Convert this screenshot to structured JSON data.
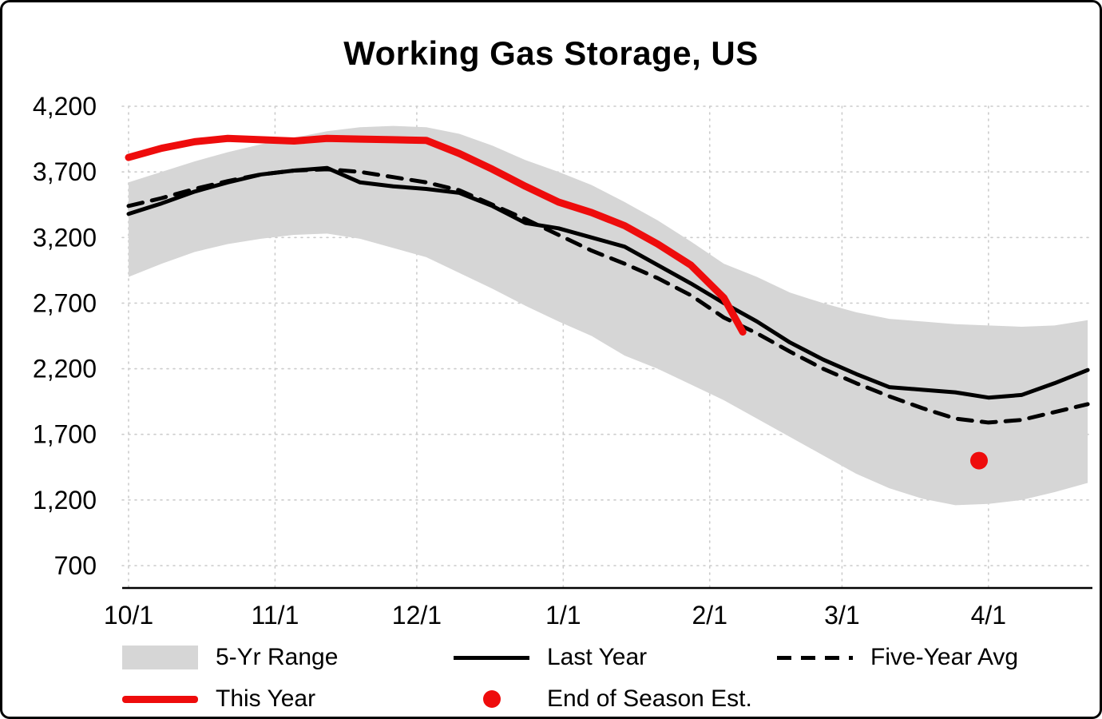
{
  "title": "Working Gas Storage, US",
  "colors": {
    "band": "#d6d6d6",
    "line_black": "#000000",
    "line_red": "#ee0c0c",
    "gridline": "#cccccc",
    "axis": "#000000"
  },
  "legend": {
    "items": [
      {
        "label": "5-Yr Range",
        "swatch": "band"
      },
      {
        "label": "Last Year",
        "swatch": "solid-line"
      },
      {
        "label": "Five-Year Avg",
        "swatch": "dashed-line"
      },
      {
        "label": "This Year",
        "swatch": "thick-red-line"
      },
      {
        "label": "End of Season Est.",
        "swatch": "red-dot"
      }
    ]
  },
  "chart_data": {
    "type": "line",
    "title": "Working Gas Storage, US",
    "xlabel": "",
    "ylabel": "",
    "x_unit": "days from Oct 1 (weekly observations)",
    "xlim": [
      0,
      204
    ],
    "ylim": [
      700,
      4200
    ],
    "grid": "dotted",
    "legend_position": "bottom",
    "x": [
      0,
      7,
      14,
      21,
      28,
      35,
      42,
      49,
      56,
      63,
      70,
      77,
      84,
      91,
      98,
      105,
      112,
      119,
      126,
      133,
      140,
      147,
      154,
      161,
      168,
      175,
      182,
      189,
      196,
      203
    ],
    "band": {
      "name": "5-Yr Range",
      "color": "#d6d6d6",
      "upper": [
        3620,
        3700,
        3780,
        3850,
        3910,
        3960,
        4010,
        4040,
        4050,
        4040,
        3990,
        3900,
        3790,
        3700,
        3600,
        3470,
        3330,
        3170,
        3000,
        2900,
        2780,
        2700,
        2630,
        2580,
        2560,
        2540,
        2530,
        2520,
        2530,
        2570
      ],
      "lower": [
        2900,
        3000,
        3090,
        3150,
        3190,
        3220,
        3230,
        3190,
        3120,
        3050,
        2930,
        2810,
        2680,
        2560,
        2450,
        2300,
        2200,
        2080,
        1960,
        1820,
        1680,
        1540,
        1400,
        1290,
        1210,
        1160,
        1170,
        1200,
        1260,
        1330
      ]
    },
    "series": [
      {
        "name": "Last Year",
        "color": "#000000",
        "style": "solid",
        "width": 5,
        "values": [
          3380,
          3460,
          3550,
          3620,
          3680,
          3710,
          3730,
          3620,
          3590,
          3570,
          3540,
          3440,
          3310,
          3270,
          3200,
          3130,
          2990,
          2850,
          2700,
          2560,
          2400,
          2270,
          2160,
          2060,
          2040,
          2020,
          1980,
          2000,
          2090,
          2190
        ]
      },
      {
        "name": "Five-Year Avg",
        "color": "#000000",
        "style": "dashed",
        "width": 5,
        "values": [
          3440,
          3500,
          3570,
          3630,
          3680,
          3710,
          3720,
          3700,
          3660,
          3620,
          3560,
          3450,
          3340,
          3220,
          3100,
          3000,
          2890,
          2760,
          2590,
          2470,
          2330,
          2200,
          2090,
          1990,
          1900,
          1820,
          1790,
          1810,
          1870,
          1930
        ]
      },
      {
        "name": "This Year",
        "color": "#ee0c0c",
        "style": "solid",
        "width": 9,
        "x": [
          0,
          7,
          14,
          21,
          28,
          35,
          42,
          49,
          56,
          63,
          70,
          77,
          84,
          91,
          98,
          105,
          112,
          119,
          126,
          130
        ],
        "values": [
          3810,
          3880,
          3930,
          3955,
          3945,
          3935,
          3955,
          3950,
          3945,
          3940,
          3840,
          3720,
          3590,
          3470,
          3390,
          3290,
          3150,
          2990,
          2740,
          2480
        ]
      }
    ],
    "point": {
      "name": "End of Season Est.",
      "x": 180,
      "value": 1500,
      "color": "#ee0c0c",
      "radius": 11
    },
    "x_ticks": [
      {
        "label": "10/1",
        "day": 0
      },
      {
        "label": "11/1",
        "day": 31
      },
      {
        "label": "12/1",
        "day": 61
      },
      {
        "label": "1/1",
        "day": 92
      },
      {
        "label": "2/1",
        "day": 123
      },
      {
        "label": "3/1",
        "day": 151
      },
      {
        "label": "4/1",
        "day": 182
      }
    ],
    "y_ticks": [
      {
        "label": "700",
        "value": 700
      },
      {
        "label": "1,200",
        "value": 1200
      },
      {
        "label": "1,700",
        "value": 1700
      },
      {
        "label": "2,200",
        "value": 2200
      },
      {
        "label": "2,700",
        "value": 2700
      },
      {
        "label": "3,200",
        "value": 3200
      },
      {
        "label": "3,700",
        "value": 3700
      },
      {
        "label": "4,200",
        "value": 4200
      }
    ]
  }
}
